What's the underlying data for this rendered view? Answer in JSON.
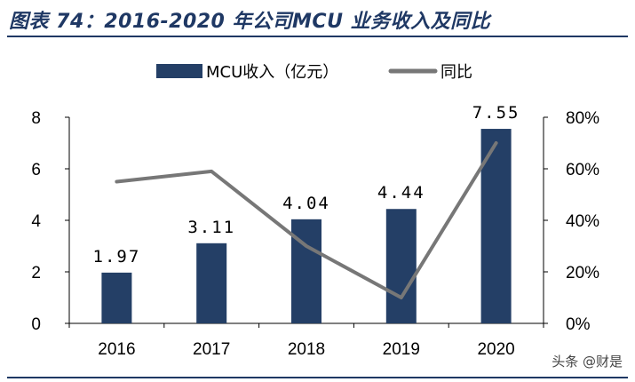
{
  "header": {
    "title": "图表 74：2016-2020 年公司MCU 业务收入及同比"
  },
  "watermark": "头条 @财是",
  "colors": {
    "bar": "#243f66",
    "line": "#777777",
    "title": "#1f3864",
    "axis": "#000000"
  },
  "chart_data": {
    "type": "bar",
    "categories": [
      "2016",
      "2017",
      "2018",
      "2019",
      "2020"
    ],
    "series": [
      {
        "name": "MCU收入（亿元）",
        "type": "bar",
        "axis": "left",
        "values": [
          1.97,
          3.11,
          4.04,
          4.44,
          7.55
        ],
        "data_labels": [
          "1.97",
          "3.11",
          "4.04",
          "4.44",
          "7.55"
        ]
      },
      {
        "name": "同比",
        "type": "line",
        "axis": "right",
        "values": [
          0.55,
          0.59,
          0.3,
          0.1,
          0.7
        ]
      }
    ],
    "y_left": {
      "ylim": [
        0,
        8
      ],
      "ticks": [
        0,
        2,
        4,
        6,
        8
      ],
      "tick_labels": [
        "0",
        "2",
        "4",
        "6",
        "8"
      ]
    },
    "y_right": {
      "ylim": [
        0,
        0.8
      ],
      "ticks": [
        0,
        0.2,
        0.4,
        0.6,
        0.8
      ],
      "tick_labels": [
        "0%",
        "20%",
        "40%",
        "60%",
        "80%"
      ]
    },
    "legend": "top-center",
    "grid": false
  }
}
